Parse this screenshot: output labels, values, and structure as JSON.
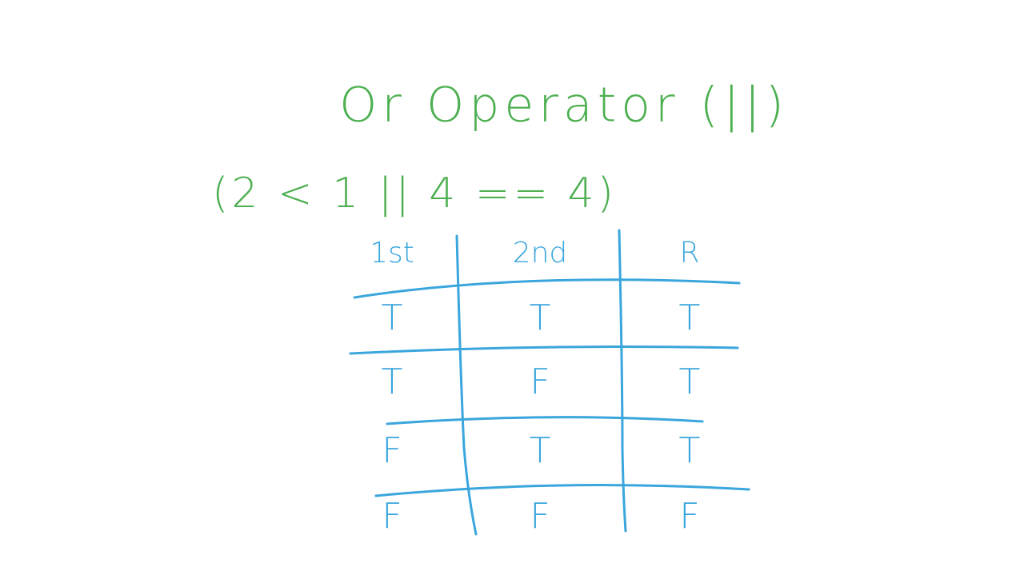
{
  "title": "Or Operator (||)",
  "expression": "(2 < 1 || 4 == 4)",
  "table": {
    "header": [
      "1st",
      "2nd",
      "R"
    ],
    "rows": [
      [
        "T",
        "T",
        "T"
      ],
      [
        "T",
        "F",
        "T"
      ],
      [
        "F",
        "T",
        "T"
      ],
      [
        "F",
        "F",
        "F"
      ]
    ]
  }
}
